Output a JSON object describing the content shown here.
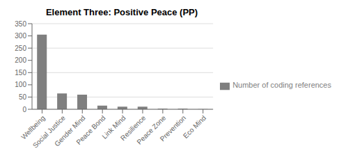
{
  "chart_data": {
    "type": "bar",
    "title": "Element Three: Positive Peace (PP)",
    "categories": [
      "Wellbeing",
      "Social Justice",
      "Gender Mind",
      "Peace Bond",
      "Link Mind",
      "Resilience",
      "Peace Zone",
      "Prevention",
      "Eco Mind"
    ],
    "series": [
      {
        "name": "Number of coding references",
        "color": "#7f7f7f",
        "values": [
          305,
          65,
          60,
          15,
          11,
          11,
          3,
          3,
          1
        ]
      }
    ],
    "ylim": [
      0,
      350
    ],
    "yticks": [
      0,
      50,
      100,
      150,
      200,
      250,
      300,
      350
    ],
    "grid": true,
    "legend": "right"
  }
}
